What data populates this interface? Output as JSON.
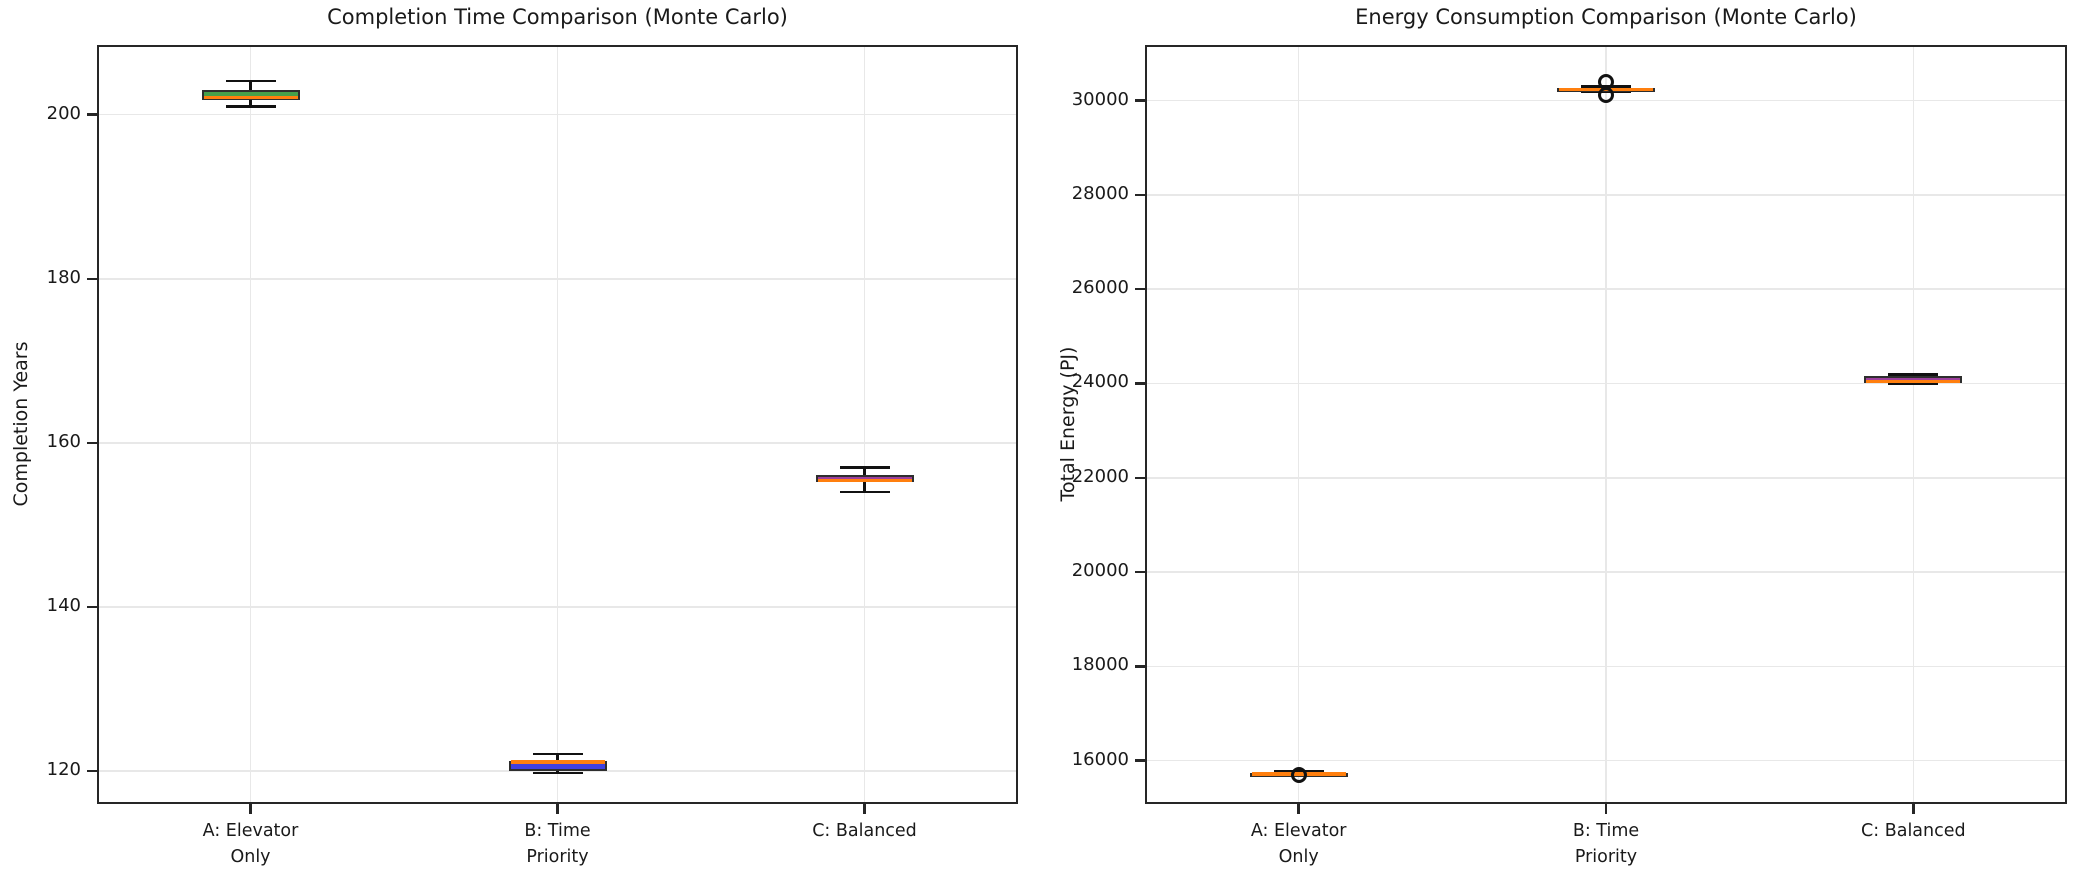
{
  "figure": {
    "background_color": "#ffffff",
    "spine_color": "#262626",
    "grid_color": "#e8e8e8",
    "text_color": "#1a1a1a",
    "whisker_color": "#111111",
    "box_edge_color": "#2e2e2e"
  },
  "chart_data": [
    {
      "type": "box",
      "title": "Completion Time Comparison (Monte Carlo)",
      "ylabel": "Completion Years",
      "xlabel": "",
      "categories": [
        "A: Elevator\nOnly",
        "B: Time\nPriority",
        "C: Balanced"
      ],
      "yticks": [
        120,
        140,
        160,
        180,
        200
      ],
      "ylim": [
        116,
        208.5
      ],
      "grid": true,
      "legend": false,
      "median_color": "#ff7f0e",
      "boxes": [
        {
          "label": "A: Elevator Only",
          "whislo": 201.0,
          "q1": 201.8,
          "med": 202.1,
          "q3": 203.0,
          "whishi": 204.1,
          "fliers": [],
          "fill": "#46a04a"
        },
        {
          "label": "B: Time Priority",
          "whislo": 119.8,
          "q1": 120.0,
          "med": 121.1,
          "q3": 121.3,
          "whishi": 122.1,
          "fliers": [],
          "fill": "#4040e0"
        },
        {
          "label": "C: Balanced",
          "whislo": 154.0,
          "q1": 155.2,
          "med": 155.4,
          "q3": 156.1,
          "whishi": 157.0,
          "fliers": [],
          "fill": "#9d3f9d"
        }
      ]
    },
    {
      "type": "box",
      "title": "Energy Consumption Comparison (Monte Carlo)",
      "ylabel": "Total Energy (PJ)",
      "xlabel": "",
      "categories": [
        "A: Elevator\nOnly",
        "B: Time\nPriority",
        "C: Balanced"
      ],
      "yticks": [
        16000,
        18000,
        20000,
        22000,
        24000,
        26000,
        28000,
        30000
      ],
      "ylim": [
        15080,
        31180
      ],
      "grid": true,
      "legend": false,
      "median_color": "#ff7f0e",
      "boxes": [
        {
          "label": "A: Elevator Only",
          "whislo": 15670,
          "q1": 15705,
          "med": 15720,
          "q3": 15735,
          "whishi": 15765,
          "fliers": [
            15700
          ],
          "fill": "#46a04a"
        },
        {
          "label": "B: Time Priority",
          "whislo": 30180,
          "q1": 30220,
          "med": 30240,
          "q3": 30265,
          "whishi": 30300,
          "fliers": [
            30400,
            30130
          ],
          "fill": "#4040e0"
        },
        {
          "label": "C: Balanced",
          "whislo": 23985,
          "q1": 24020,
          "med": 24040,
          "q3": 24150,
          "whishi": 24195,
          "fliers": [],
          "fill": "#9d3f9d"
        }
      ]
    }
  ]
}
